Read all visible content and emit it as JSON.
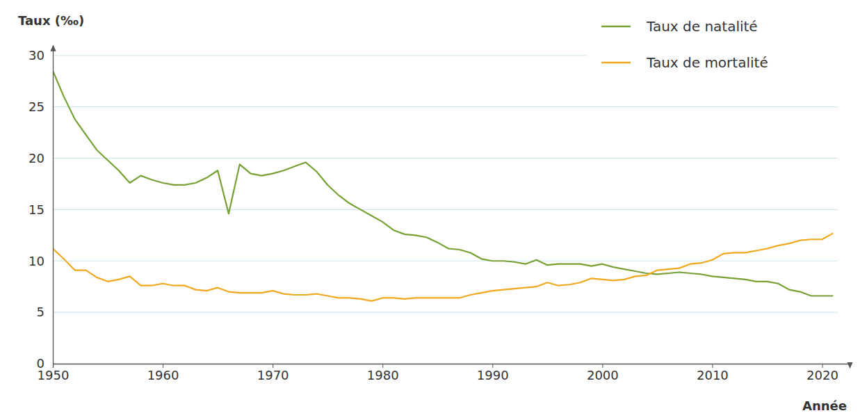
{
  "chart_data": {
    "type": "line",
    "x_label": "Année",
    "y_label": "Taux (‰)",
    "x": [
      1950,
      1951,
      1952,
      1953,
      1954,
      1955,
      1956,
      1957,
      1958,
      1959,
      1960,
      1961,
      1962,
      1963,
      1964,
      1965,
      1966,
      1967,
      1968,
      1969,
      1970,
      1971,
      1972,
      1973,
      1974,
      1975,
      1976,
      1977,
      1978,
      1979,
      1980,
      1981,
      1982,
      1983,
      1984,
      1985,
      1986,
      1987,
      1988,
      1989,
      1990,
      1991,
      1992,
      1993,
      1994,
      1995,
      1996,
      1997,
      1998,
      1999,
      2000,
      2001,
      2002,
      2003,
      2004,
      2005,
      2006,
      2007,
      2008,
      2009,
      2010,
      2011,
      2012,
      2013,
      2014,
      2015,
      2016,
      2017,
      2018,
      2019,
      2020,
      2021
    ],
    "series": [
      {
        "name": "Taux de natalité",
        "color": "#76a034",
        "values": [
          28.5,
          26.0,
          23.8,
          22.3,
          20.8,
          19.8,
          18.8,
          17.6,
          18.3,
          17.9,
          17.6,
          17.4,
          17.4,
          17.6,
          18.1,
          18.8,
          14.6,
          19.4,
          18.5,
          18.3,
          18.5,
          18.8,
          19.2,
          19.6,
          18.7,
          17.4,
          16.4,
          15.6,
          15.0,
          14.4,
          13.8,
          13.0,
          12.6,
          12.5,
          12.3,
          11.8,
          11.2,
          11.1,
          10.8,
          10.2,
          10.0,
          10.0,
          9.9,
          9.7,
          10.1,
          9.6,
          9.7,
          9.7,
          9.7,
          9.5,
          9.7,
          9.4,
          9.2,
          9.0,
          8.8,
          8.7,
          8.8,
          8.9,
          8.8,
          8.7,
          8.5,
          8.4,
          8.3,
          8.2,
          8.0,
          8.0,
          7.8,
          7.2,
          7.0,
          6.6,
          6.6,
          6.6
        ]
      },
      {
        "name": "Taux de mortalité",
        "color": "#f0a81e",
        "values": [
          11.2,
          10.2,
          9.1,
          9.1,
          8.4,
          8.0,
          8.2,
          8.5,
          7.6,
          7.6,
          7.8,
          7.6,
          7.6,
          7.2,
          7.1,
          7.4,
          7.0,
          6.9,
          6.9,
          6.9,
          7.1,
          6.8,
          6.7,
          6.7,
          6.8,
          6.6,
          6.4,
          6.4,
          6.3,
          6.1,
          6.4,
          6.4,
          6.3,
          6.4,
          6.4,
          6.4,
          6.4,
          6.4,
          6.7,
          6.9,
          7.1,
          7.2,
          7.3,
          7.4,
          7.5,
          7.9,
          7.6,
          7.7,
          7.9,
          8.3,
          8.2,
          8.1,
          8.2,
          8.5,
          8.6,
          9.1,
          9.2,
          9.3,
          9.7,
          9.8,
          10.1,
          10.7,
          10.8,
          10.8,
          11.0,
          11.2,
          11.5,
          11.7,
          12.0,
          12.1,
          12.1,
          12.7
        ]
      }
    ],
    "xlim": [
      1950,
      2022.5
    ],
    "xticks": [
      1950,
      1960,
      1970,
      1980,
      1990,
      2000,
      2010,
      2020
    ],
    "ylim": [
      0,
      31
    ],
    "yticks": [
      0,
      5,
      10,
      15,
      20,
      25,
      30
    ],
    "grid": true,
    "legend": "top-right"
  }
}
